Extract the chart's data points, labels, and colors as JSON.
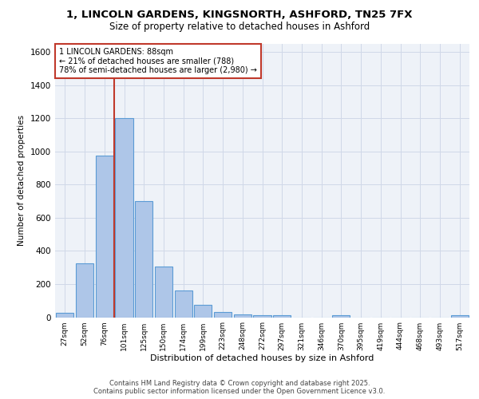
{
  "title1": "1, LINCOLN GARDENS, KINGSNORTH, ASHFORD, TN25 7FX",
  "title2": "Size of property relative to detached houses in Ashford",
  "xlabel": "Distribution of detached houses by size in Ashford",
  "ylabel": "Number of detached properties",
  "categories": [
    "27sqm",
    "52sqm",
    "76sqm",
    "101sqm",
    "125sqm",
    "150sqm",
    "174sqm",
    "199sqm",
    "223sqm",
    "248sqm",
    "272sqm",
    "297sqm",
    "321sqm",
    "346sqm",
    "370sqm",
    "395sqm",
    "419sqm",
    "444sqm",
    "468sqm",
    "493sqm",
    "517sqm"
  ],
  "values": [
    25,
    325,
    975,
    1200,
    700,
    305,
    160,
    75,
    30,
    15,
    10,
    10,
    0,
    0,
    10,
    0,
    0,
    0,
    0,
    0,
    10
  ],
  "bar_color": "#aec6e8",
  "bar_edge_color": "#5b9bd5",
  "grid_color": "#d0d8e8",
  "background_color": "#eef2f8",
  "vline_color": "#c0392b",
  "property_label": "1 LINCOLN GARDENS: 88sqm",
  "pct_smaller": 21,
  "count_smaller": 788,
  "pct_larger_semi": 78,
  "count_larger_semi": 2980,
  "annotation_box_color": "#c0392b",
  "ylim": [
    0,
    1650
  ],
  "yticks": [
    0,
    200,
    400,
    600,
    800,
    1000,
    1200,
    1400,
    1600
  ],
  "footer": "Contains HM Land Registry data © Crown copyright and database right 2025.\nContains public sector information licensed under the Open Government Licence v3.0."
}
